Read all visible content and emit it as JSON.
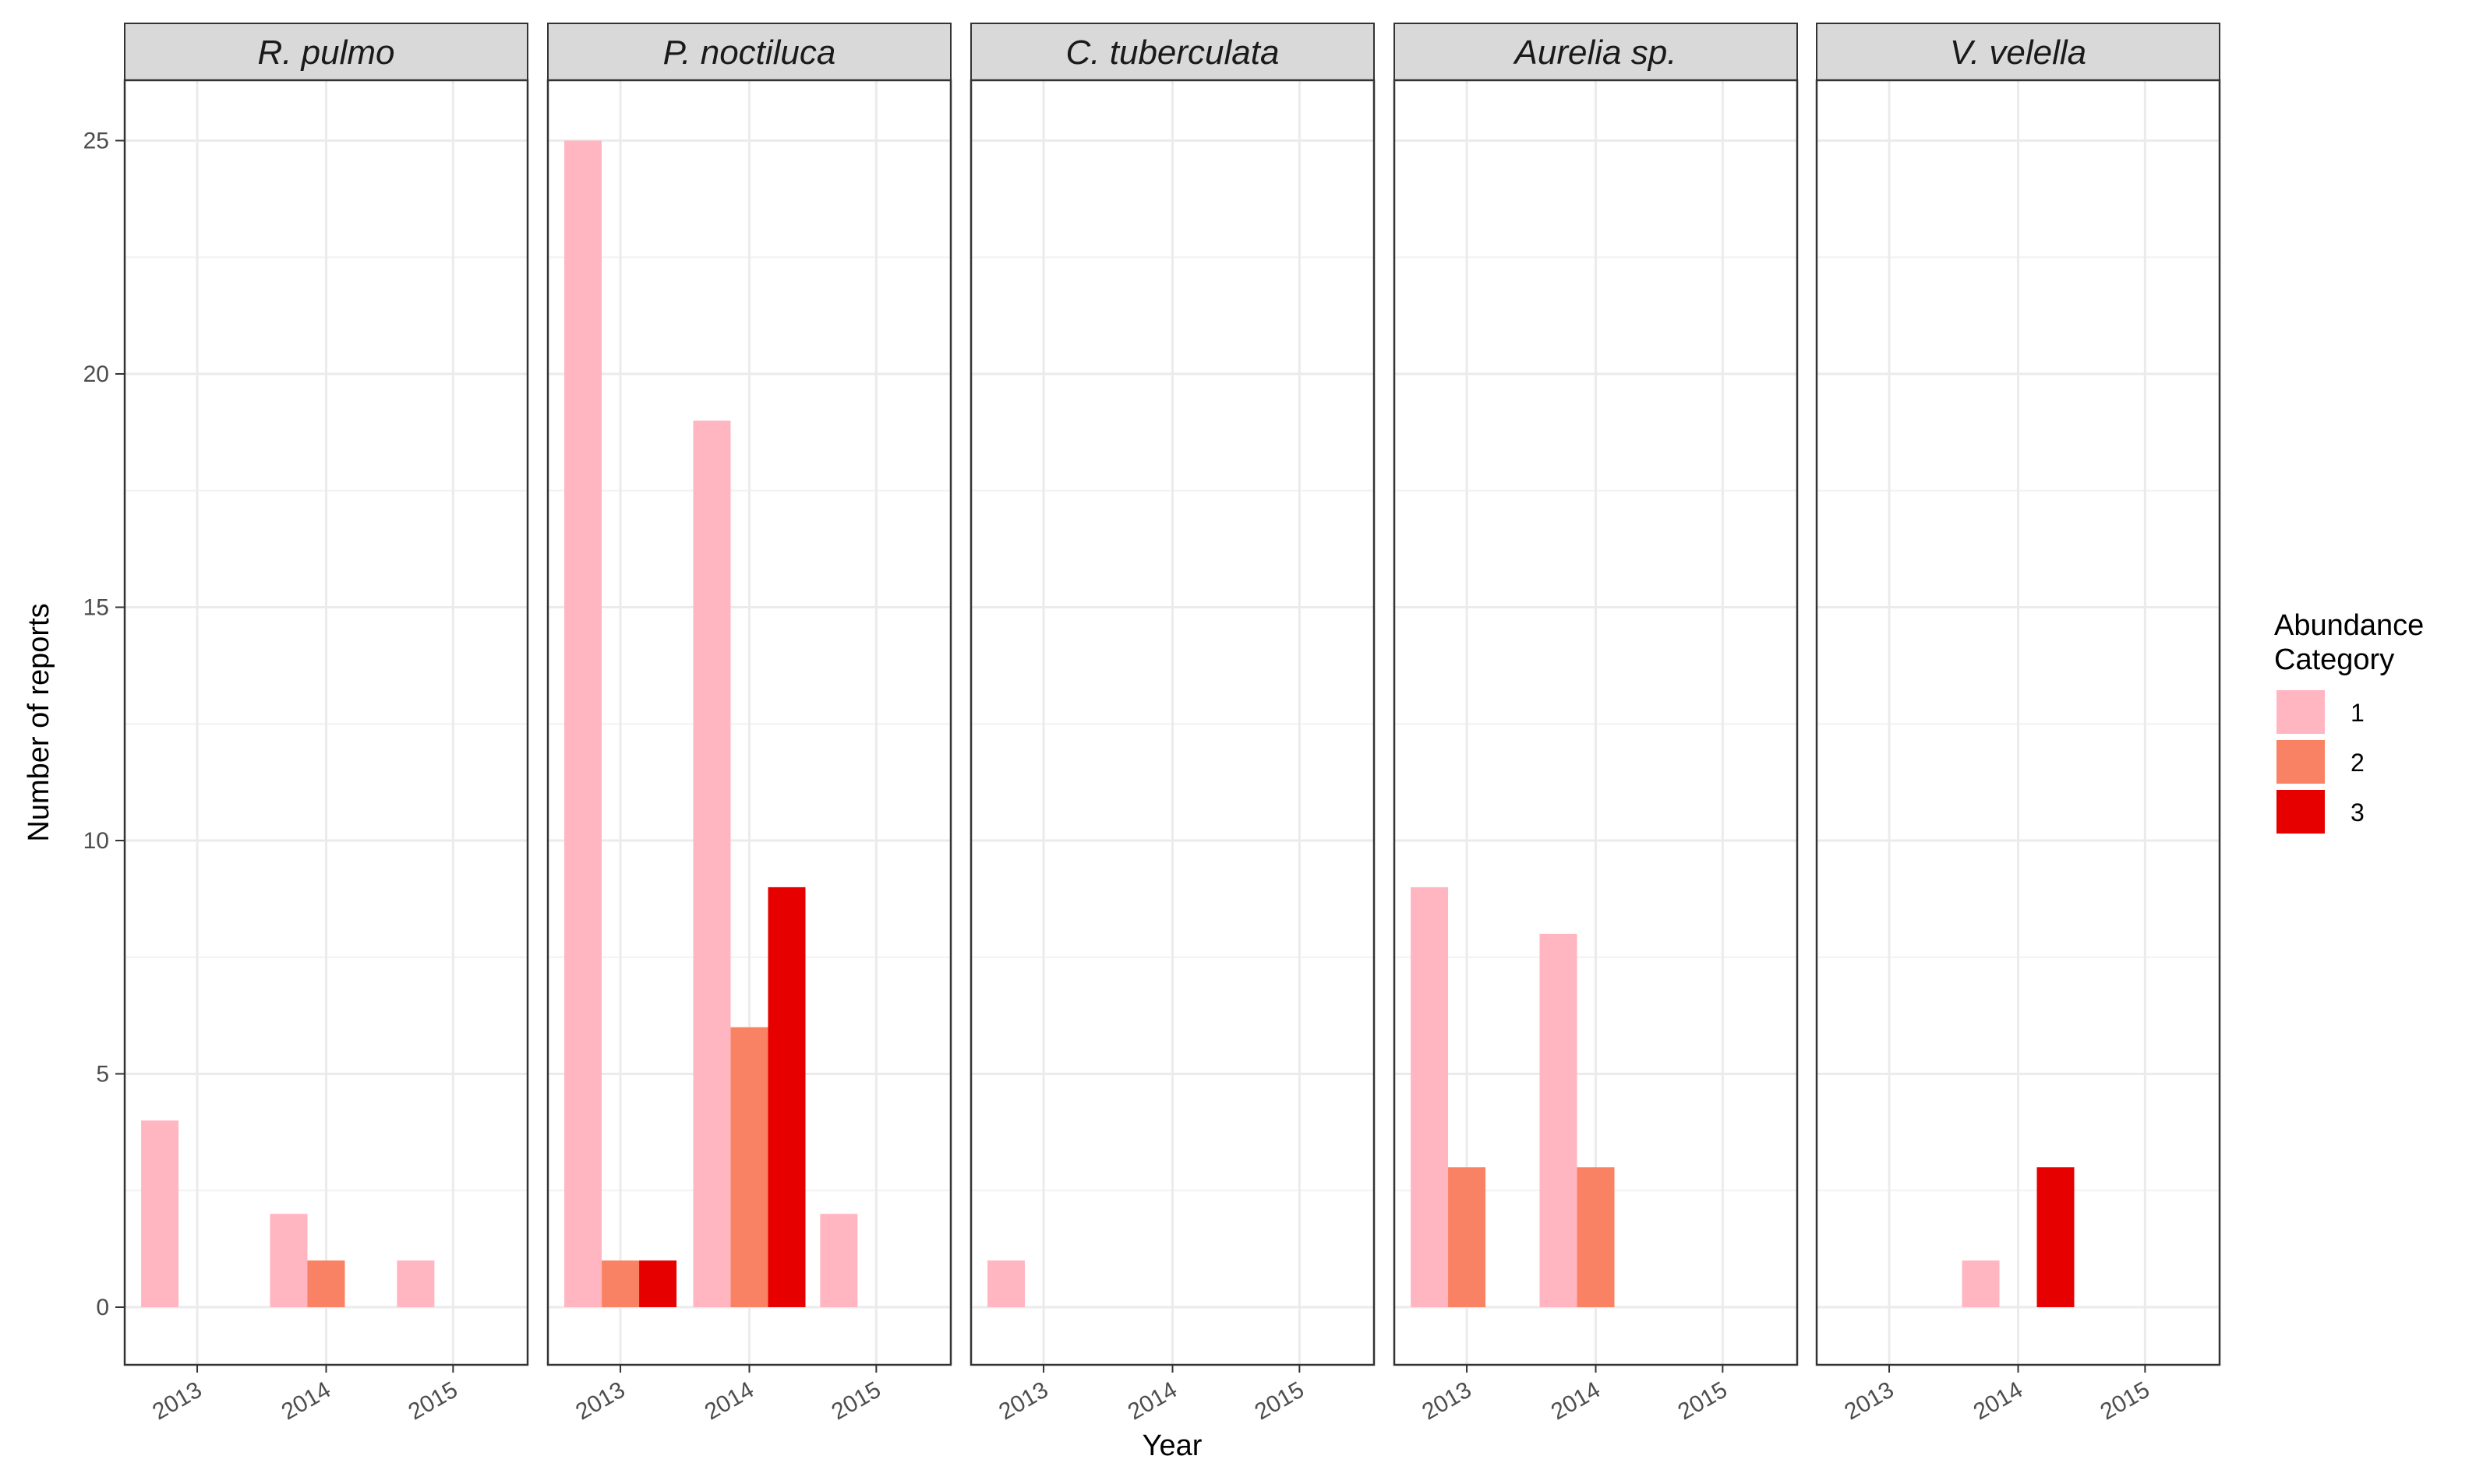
{
  "chart_data": {
    "type": "bar",
    "facet_by": "species",
    "x": [
      "2013",
      "2014",
      "2015"
    ],
    "xlabel": "Year",
    "ylabel": "Number of reports",
    "ylim": [
      0,
      27
    ],
    "yticks": [
      0,
      5,
      10,
      15,
      20,
      25
    ],
    "grid": true,
    "legend": {
      "title_lines": [
        "Abundance",
        "Category"
      ],
      "position": "right",
      "items": [
        {
          "label": "1",
          "color": "#ffb6c1"
        },
        {
          "label": "2",
          "color": "#fa8264"
        },
        {
          "label": "3",
          "color": "#e60000"
        }
      ]
    },
    "facets": [
      {
        "name": "R. pulmo",
        "series": [
          {
            "name": "1",
            "values": [
              4,
              2,
              1
            ]
          },
          {
            "name": "2",
            "values": [
              0,
              1,
              0
            ]
          },
          {
            "name": "3",
            "values": [
              0,
              0,
              0
            ]
          }
        ]
      },
      {
        "name": "P. noctiluca",
        "series": [
          {
            "name": "1",
            "values": [
              25,
              19,
              2
            ]
          },
          {
            "name": "2",
            "values": [
              1,
              6,
              0
            ]
          },
          {
            "name": "3",
            "values": [
              1,
              9,
              0
            ]
          }
        ]
      },
      {
        "name": "C. tuberculata",
        "series": [
          {
            "name": "1",
            "values": [
              1,
              0,
              0
            ]
          },
          {
            "name": "2",
            "values": [
              0,
              0,
              0
            ]
          },
          {
            "name": "3",
            "values": [
              0,
              0,
              0
            ]
          }
        ]
      },
      {
        "name": "Aurelia sp.",
        "series": [
          {
            "name": "1",
            "values": [
              9,
              8,
              0
            ]
          },
          {
            "name": "2",
            "values": [
              3,
              3,
              0
            ]
          },
          {
            "name": "3",
            "values": [
              0,
              0,
              0
            ]
          }
        ]
      },
      {
        "name": "V. velella",
        "series": [
          {
            "name": "1",
            "values": [
              0,
              1,
              0
            ]
          },
          {
            "name": "2",
            "values": [
              0,
              0,
              0
            ]
          },
          {
            "name": "3",
            "values": [
              0,
              3,
              0
            ]
          }
        ]
      }
    ]
  }
}
